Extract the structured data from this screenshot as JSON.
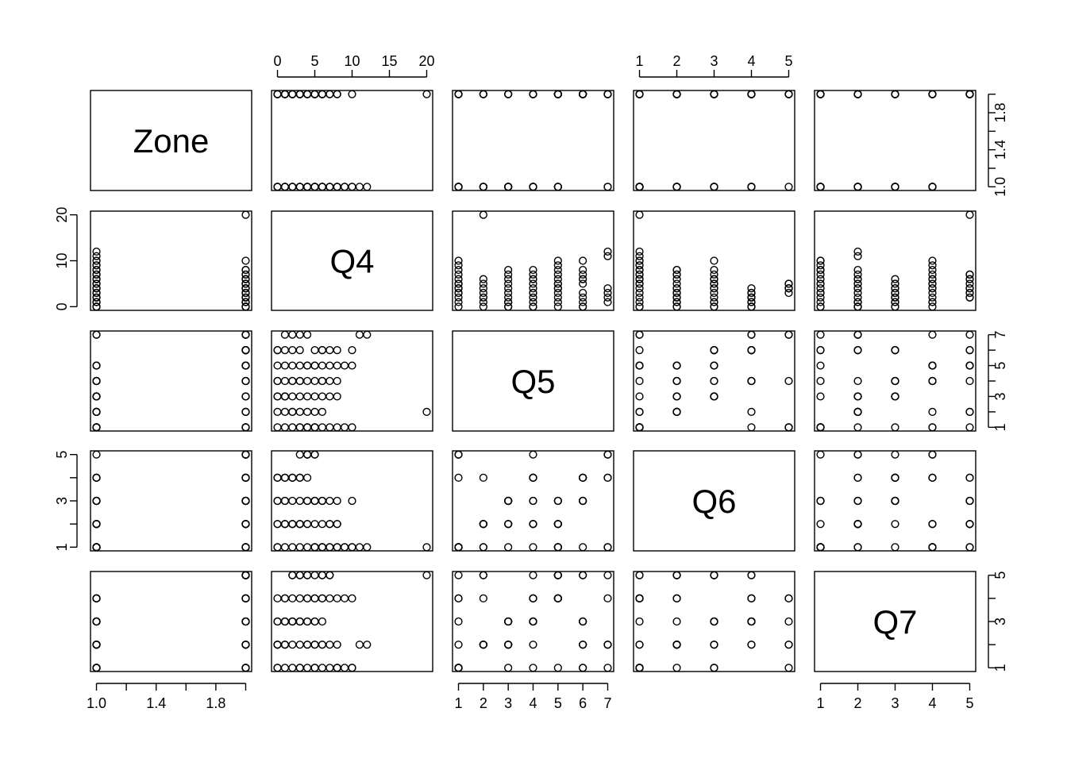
{
  "chart_data": {
    "type": "scatter",
    "variables": [
      "Zone",
      "Q4",
      "Q5",
      "Q6",
      "Q7"
    ],
    "axes": {
      "Zone": {
        "range": [
          0.96,
          2.04
        ],
        "ticks": [
          1.0,
          1.2,
          1.4,
          1.6,
          1.8,
          2.0
        ],
        "tick_labels": [
          "1.0",
          "",
          "1.4",
          "",
          "1.8",
          ""
        ]
      },
      "Q4": {
        "range": [
          -0.8,
          20.8
        ],
        "ticks": [
          0,
          5,
          10,
          15,
          20
        ],
        "tick_labels": [
          "0",
          "5",
          "10",
          "15",
          "20"
        ],
        "left_ticks": [
          0,
          10,
          20
        ],
        "left_tick_labels": [
          "0",
          "10",
          "20"
        ]
      },
      "Q5": {
        "range": [
          0.76,
          7.24
        ],
        "ticks": [
          1,
          2,
          3,
          4,
          5,
          6,
          7
        ],
        "tick_labels": [
          "1",
          "2",
          "3",
          "4",
          "5",
          "6",
          "7"
        ],
        "right_tick_labels": [
          "1",
          "",
          "3",
          "",
          "5",
          "",
          "7"
        ]
      },
      "Q6": {
        "range": [
          0.84,
          5.16
        ],
        "ticks": [
          1,
          2,
          3,
          4,
          5
        ],
        "tick_labels": [
          "1",
          "2",
          "3",
          "4",
          "5"
        ],
        "left_tick_labels": [
          "1",
          "",
          "3",
          "",
          "5"
        ]
      },
      "Q7": {
        "range": [
          0.84,
          5.16
        ],
        "ticks": [
          1,
          2,
          3,
          4,
          5
        ],
        "tick_labels": [
          "1",
          "2",
          "3",
          "4",
          "5"
        ],
        "right_tick_labels": [
          "1",
          "",
          "3",
          "",
          "5"
        ]
      }
    },
    "axis_placement": {
      "top": [
        1,
        3
      ],
      "bottom": [
        0,
        2,
        4
      ],
      "left": [
        1,
        3
      ],
      "right": [
        0,
        2,
        4
      ]
    },
    "observations": {
      "Zone": [
        1,
        1,
        1,
        1,
        1,
        1,
        1,
        1,
        1,
        1,
        1,
        1,
        1,
        1,
        1,
        1,
        1,
        1,
        1,
        1,
        1,
        1,
        1,
        1,
        1,
        1,
        1,
        1,
        1,
        1,
        1,
        1,
        1,
        1,
        1,
        1,
        1,
        1,
        1,
        1,
        2,
        2,
        2,
        2,
        2,
        2,
        2,
        2,
        2,
        2,
        2,
        2,
        2,
        2,
        2,
        2,
        2,
        2,
        2,
        2,
        2,
        2,
        2,
        2,
        2,
        2,
        2,
        2,
        2,
        2,
        2,
        2,
        2,
        2,
        2,
        2,
        2,
        2,
        2,
        2
      ],
      "Q4": [
        0,
        1,
        2,
        3,
        4,
        5,
        6,
        7,
        8,
        9,
        10,
        11,
        12,
        0,
        1,
        2,
        3,
        4,
        5,
        6,
        7,
        8,
        0,
        1,
        2,
        3,
        4,
        5,
        6,
        0,
        1,
        2,
        3,
        4,
        5,
        6,
        7,
        8,
        9,
        10,
        0,
        1,
        2,
        3,
        4,
        5,
        6,
        7,
        8,
        10,
        0,
        1,
        2,
        3,
        4,
        5,
        6,
        20,
        0,
        1,
        2,
        3,
        4,
        5,
        6,
        0,
        1,
        2,
        3,
        4,
        5,
        6,
        7,
        8,
        0,
        1,
        2,
        3,
        4,
        5
      ],
      "Q5": [
        1,
        1,
        1,
        1,
        1,
        1,
        1,
        1,
        1,
        1,
        1,
        7,
        7,
        2,
        2,
        2,
        2,
        2,
        2,
        3,
        3,
        3,
        3,
        3,
        3,
        3,
        3,
        3,
        4,
        4,
        4,
        4,
        4,
        4,
        4,
        4,
        5,
        5,
        5,
        5,
        5,
        5,
        5,
        5,
        5,
        5,
        6,
        6,
        6,
        6,
        6,
        6,
        6,
        6,
        1,
        1,
        2,
        2,
        3,
        3,
        4,
        4,
        5,
        5,
        6,
        6,
        7,
        7,
        7,
        7,
        6,
        5,
        4,
        4,
        4,
        3,
        2,
        1,
        1,
        1
      ],
      "Q6": [
        1,
        1,
        1,
        1,
        1,
        1,
        1,
        1,
        1,
        1,
        1,
        1,
        1,
        2,
        2,
        2,
        2,
        2,
        2,
        2,
        2,
        2,
        3,
        3,
        3,
        3,
        3,
        3,
        3,
        4,
        4,
        4,
        4,
        4,
        5,
        1,
        1,
        1,
        1,
        1,
        2,
        2,
        2,
        2,
        2,
        3,
        3,
        3,
        3,
        3,
        4,
        4,
        4,
        4,
        5,
        1,
        1,
        1,
        1,
        2,
        2,
        2,
        3,
        3,
        3,
        4,
        4,
        4,
        5,
        5,
        1,
        1,
        2,
        2,
        3,
        3,
        4,
        4,
        5,
        5
      ],
      "Q7": [
        1,
        1,
        1,
        1,
        1,
        1,
        1,
        1,
        1,
        1,
        1,
        2,
        2,
        2,
        2,
        2,
        2,
        2,
        2,
        2,
        2,
        2,
        2,
        3,
        3,
        3,
        3,
        3,
        3,
        3,
        3,
        3,
        3,
        4,
        4,
        4,
        4,
        4,
        4,
        4,
        4,
        4,
        5,
        5,
        5,
        5,
        5,
        5,
        1,
        1,
        2,
        2,
        3,
        3,
        4,
        4,
        5,
        5,
        1,
        2,
        3,
        4,
        5,
        1,
        2,
        3,
        4,
        5,
        1,
        2,
        3,
        4,
        5,
        1,
        2,
        3,
        4,
        5,
        3,
        2
      ]
    }
  }
}
